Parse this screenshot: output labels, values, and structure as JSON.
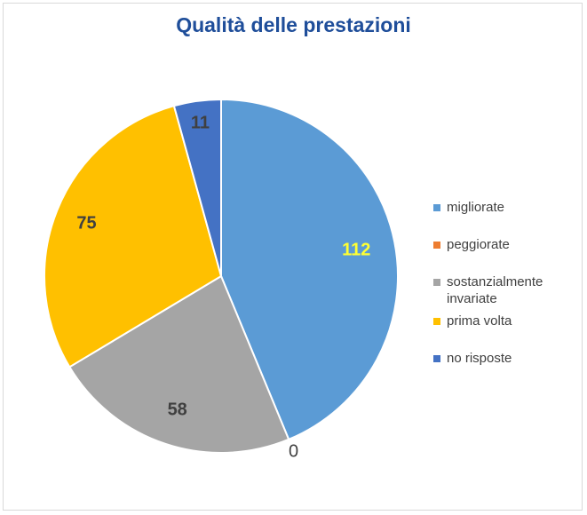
{
  "chart_data": {
    "type": "pie",
    "title": "Qualità delle prestazioni",
    "categories": [
      "migliorate",
      "peggiorate",
      "sostanzialmente invariate",
      "prima volta",
      "no risposte"
    ],
    "values": [
      112,
      0,
      58,
      75,
      11
    ],
    "colors": [
      "#5b9bd5",
      "#ed7d31",
      "#a5a5a5",
      "#ffc000",
      "#4472c4"
    ],
    "label_colors": [
      "#ffff33",
      "#404040",
      "#404040",
      "#404040",
      "#404040"
    ],
    "start_angle_deg": 0,
    "direction": "clockwise",
    "legend_position": "right"
  }
}
